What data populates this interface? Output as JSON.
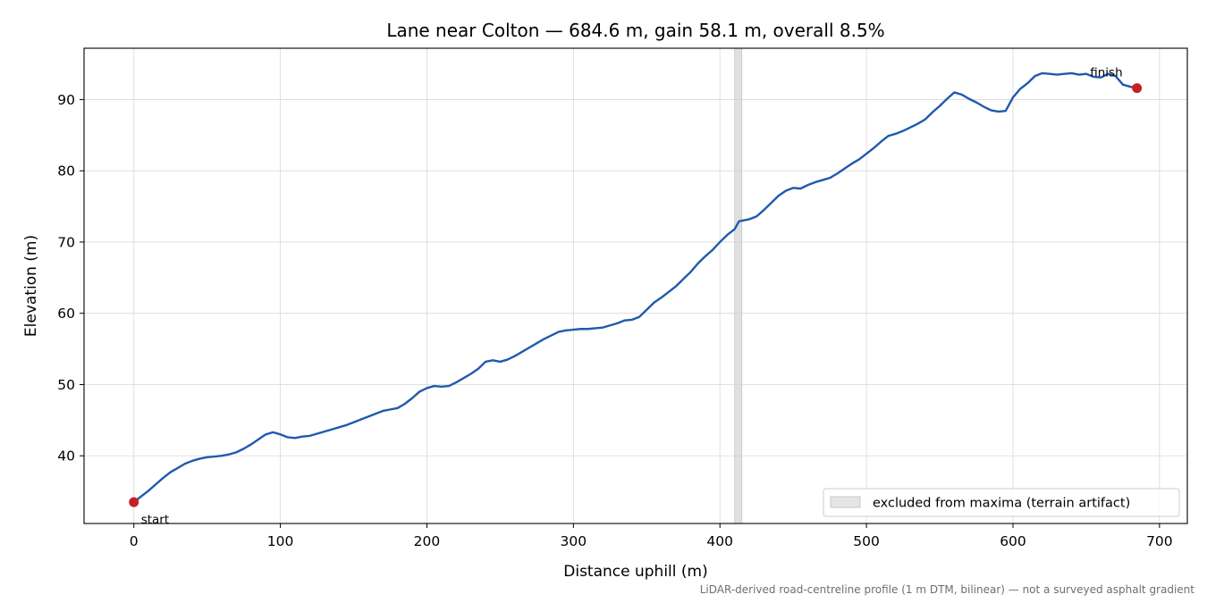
{
  "chart_data": {
    "type": "line",
    "title": "Lane near Colton — 684.6 m, gain 58.1 m, overall 8.5%",
    "xlabel": "Distance uphill (m)",
    "ylabel": "Elevation (m)",
    "xlim": [
      -34,
      719
    ],
    "ylim": [
      30.5,
      97.2
    ],
    "xticks": [
      0,
      100,
      200,
      300,
      400,
      500,
      600,
      700
    ],
    "yticks": [
      40,
      50,
      60,
      70,
      80,
      90
    ],
    "grid": true,
    "legend_position": "bottom-right",
    "series": [
      {
        "color": "#1f5aad",
        "x": [
          0,
          5,
          10,
          15,
          20,
          25,
          30,
          35,
          40,
          45,
          50,
          55,
          60,
          65,
          70,
          75,
          80,
          85,
          90,
          95,
          100,
          105,
          110,
          115,
          120,
          125,
          130,
          135,
          140,
          145,
          150,
          155,
          160,
          165,
          170,
          175,
          180,
          185,
          190,
          195,
          200,
          205,
          210,
          215,
          220,
          225,
          230,
          235,
          240,
          245,
          250,
          255,
          260,
          265,
          270,
          275,
          280,
          285,
          290,
          295,
          300,
          305,
          310,
          315,
          320,
          325,
          330,
          335,
          340,
          345,
          350,
          355,
          360,
          365,
          370,
          375,
          380,
          385,
          390,
          395,
          400,
          405,
          410,
          413,
          415,
          420,
          425,
          430,
          435,
          440,
          445,
          450,
          455,
          460,
          465,
          470,
          475,
          480,
          485,
          490,
          495,
          500,
          505,
          510,
          515,
          520,
          525,
          530,
          535,
          540,
          545,
          550,
          555,
          560,
          565,
          570,
          575,
          580,
          585,
          590,
          595,
          600,
          605,
          610,
          615,
          620,
          625,
          630,
          635,
          640,
          645,
          650,
          655,
          660,
          665,
          670,
          675,
          680,
          684.6
        ],
        "y": [
          33.5,
          34.3,
          35.1,
          36.0,
          36.9,
          37.7,
          38.3,
          38.9,
          39.3,
          39.6,
          39.8,
          39.9,
          40.0,
          40.2,
          40.5,
          41.0,
          41.6,
          42.3,
          43.0,
          43.3,
          43.0,
          42.6,
          42.5,
          42.7,
          42.8,
          43.1,
          43.4,
          43.7,
          44.0,
          44.3,
          44.7,
          45.1,
          45.5,
          45.9,
          46.3,
          46.5,
          46.7,
          47.3,
          48.1,
          49.0,
          49.5,
          49.8,
          49.7,
          49.8,
          50.3,
          50.9,
          51.5,
          52.2,
          53.2,
          53.4,
          53.2,
          53.5,
          54.0,
          54.6,
          55.2,
          55.8,
          56.4,
          56.9,
          57.4,
          57.6,
          57.7,
          57.8,
          57.8,
          57.9,
          58.0,
          58.3,
          58.6,
          59.0,
          59.1,
          59.5,
          60.5,
          61.5,
          62.2,
          63.0,
          63.8,
          64.8,
          65.8,
          67.0,
          68.0,
          68.9,
          70.0,
          71.0,
          71.8,
          72.9,
          73.0,
          73.2,
          73.6,
          74.5,
          75.5,
          76.5,
          77.2,
          77.6,
          77.5,
          78.0,
          78.4,
          78.7,
          79.0,
          79.6,
          80.3,
          81.0,
          81.6,
          82.4,
          83.2,
          84.1,
          84.9,
          85.2,
          85.6,
          86.1,
          86.6,
          87.2,
          88.2,
          89.1,
          90.1,
          91.0,
          90.7,
          90.1,
          89.6,
          89.0,
          88.5,
          88.3,
          88.4,
          90.3,
          91.5,
          92.3,
          93.3,
          93.7,
          93.6,
          93.5,
          93.6,
          93.7,
          93.5,
          93.6,
          93.2,
          93.1,
          93.6,
          93.3,
          92.1,
          91.8,
          91.6
        ]
      }
    ],
    "markers": [
      {
        "x": 0,
        "y": 33.5,
        "label": "start",
        "color": "#c62026"
      },
      {
        "x": 684.6,
        "y": 91.6,
        "label": "finish",
        "color": "#c62026"
      }
    ],
    "excluded_band": {
      "x_start": 410,
      "x_end": 415,
      "color": "#d3d3d3",
      "label": "excluded from maxima (terrain artifact)"
    },
    "footnote": "LiDAR-derived road-centreline profile (1 m DTM, bilinear) — not a surveyed asphalt gradient"
  }
}
